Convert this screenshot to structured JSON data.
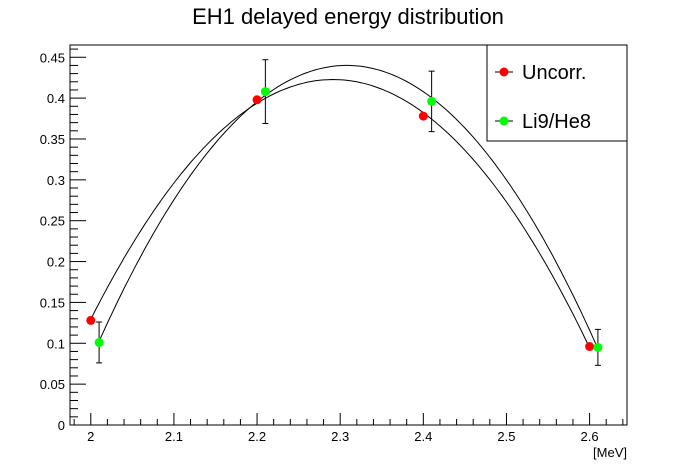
{
  "chart_data": {
    "type": "scatter",
    "title": "EH1 delayed energy distribution",
    "xlabel": "[MeV]",
    "ylabel": "",
    "xlim": [
      1.975,
      2.645
    ],
    "ylim": [
      0,
      0.465
    ],
    "x_ticks": [
      "2",
      "2.1",
      "2.2",
      "2.3",
      "2.4",
      "2.5",
      "2.6"
    ],
    "y_ticks": [
      "0",
      "0.05",
      "0.1",
      "0.15",
      "0.2",
      "0.25",
      "0.3",
      "0.35",
      "0.4",
      "0.45"
    ],
    "legend_position": "top-right",
    "series": [
      {
        "name": "Uncorr.",
        "color": "#ff0000",
        "points": [
          {
            "x": 2.0,
            "y": 0.128
          },
          {
            "x": 2.2,
            "y": 0.398
          },
          {
            "x": 2.4,
            "y": 0.378
          },
          {
            "x": 2.6,
            "y": 0.096
          }
        ],
        "fit": "quadratic"
      },
      {
        "name": "Li9/He8",
        "color": "#00ff00",
        "points": [
          {
            "x": 2.01,
            "y": 0.101,
            "err": 0.025
          },
          {
            "x": 2.21,
            "y": 0.408,
            "err": 0.039
          },
          {
            "x": 2.41,
            "y": 0.396,
            "err": 0.037
          },
          {
            "x": 2.61,
            "y": 0.095,
            "err": 0.022
          }
        ],
        "fit": "quadratic"
      }
    ]
  }
}
